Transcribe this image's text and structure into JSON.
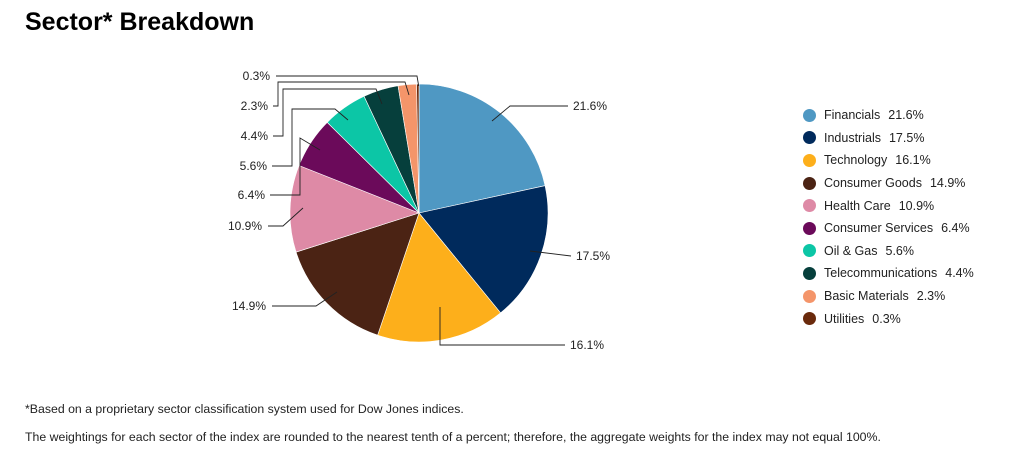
{
  "title": "Sector* Breakdown",
  "chart_data": {
    "type": "pie",
    "slices": [
      {
        "name": "Financials",
        "value": 21.6,
        "label": "21.6%",
        "color": "#4f98c3"
      },
      {
        "name": "Industrials",
        "value": 17.5,
        "label": "17.5%",
        "color": "#002a5c"
      },
      {
        "name": "Technology",
        "value": 16.1,
        "label": "16.1%",
        "color": "#fdaf1b"
      },
      {
        "name": "Consumer Goods",
        "value": 14.9,
        "label": "14.9%",
        "color": "#4b2314"
      },
      {
        "name": "Health Care",
        "value": 10.9,
        "label": "10.9%",
        "color": "#de8aa6"
      },
      {
        "name": "Consumer Services",
        "value": 6.4,
        "label": "6.4%",
        "color": "#6b0a5a"
      },
      {
        "name": "Oil & Gas",
        "value": 5.6,
        "label": "5.6%",
        "color": "#0cc6a6"
      },
      {
        "name": "Telecommunications",
        "value": 4.4,
        "label": "4.4%",
        "color": "#063f3c"
      },
      {
        "name": "Basic Materials",
        "value": 2.3,
        "label": "2.3%",
        "color": "#f4956a"
      },
      {
        "name": "Utilities",
        "value": 0.3,
        "label": "0.3%",
        "color": "#6a2a0c"
      }
    ],
    "legend_position": "right"
  },
  "legend": [
    {
      "name": "Financials",
      "pct": "21.6%",
      "color": "#4f98c3"
    },
    {
      "name": "Industrials",
      "pct": "17.5%",
      "color": "#002a5c"
    },
    {
      "name": "Technology",
      "pct": "16.1%",
      "color": "#fdaf1b"
    },
    {
      "name": "Consumer Goods",
      "pct": "14.9%",
      "color": "#4b2314"
    },
    {
      "name": "Health Care",
      "pct": "10.9%",
      "color": "#de8aa6"
    },
    {
      "name": "Consumer Services",
      "pct": "6.4%",
      "color": "#6b0a5a"
    },
    {
      "name": "Oil & Gas",
      "pct": "5.6%",
      "color": "#0cc6a6"
    },
    {
      "name": "Telecommunications",
      "pct": "4.4%",
      "color": "#063f3c"
    },
    {
      "name": "Basic Materials",
      "pct": "2.3%",
      "color": "#f4956a"
    },
    {
      "name": "Utilities",
      "pct": "0.3%",
      "color": "#6a2a0c"
    }
  ],
  "footnotes": [
    "*Based on a proprietary sector classification system used for Dow Jones indices.",
    "The weightings for each sector of the index are rounded to the nearest tenth of a percent; therefore, the aggregate weights for the index may not equal 100%."
  ]
}
